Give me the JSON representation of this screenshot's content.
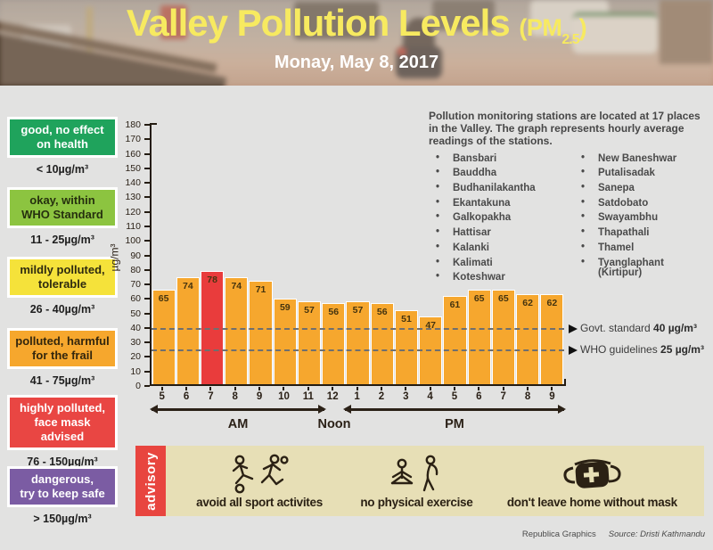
{
  "header": {
    "title": "Valley Pollution Levels",
    "pm_prefix": "(PM",
    "pm_sub": "2.5",
    "pm_close": ")",
    "subtitle": "Monay, May 8, 2017"
  },
  "legend": {
    "items": [
      {
        "line1": "good, no effect",
        "line2": "on health",
        "range": "< 10µg/m³",
        "color": "#1fa35c",
        "text_color": "#ffffff"
      },
      {
        "line1": "okay, within",
        "line2": "WHO Standard",
        "range": "11 - 25µg/m³",
        "color": "#8cc440",
        "text_color": "#26300f"
      },
      {
        "line1": "mildly polluted,",
        "line2": "tolerable",
        "range": "26 - 40µg/m³",
        "color": "#f5e23a",
        "text_color": "#2e2a10"
      },
      {
        "line1": "polluted, harmful",
        "line2": "for the frail",
        "range": "41 - 75µg/m³",
        "color": "#f6a72d",
        "text_color": "#33260d"
      },
      {
        "line1": "highly polluted,",
        "line2": "face mask advised",
        "range": "76 - 150µg/m³",
        "color": "#e94643",
        "text_color": "#ffffff"
      },
      {
        "line1": "dangerous,",
        "line2": "try to keep safe",
        "range": "> 150µg/m³",
        "color": "#7b5ca3",
        "text_color": "#ffffff"
      }
    ]
  },
  "chart_data": {
    "type": "bar",
    "title": "Valley Pollution Levels (PM2.5)",
    "date": "Monay, May 8, 2017",
    "categories": [
      "5",
      "6",
      "7",
      "8",
      "9",
      "10",
      "11",
      "12",
      "1",
      "2",
      "3",
      "4",
      "5",
      "6",
      "7",
      "8",
      "9"
    ],
    "values": [
      65,
      74,
      78,
      74,
      71,
      59,
      57,
      56,
      57,
      56,
      51,
      47,
      61,
      65,
      65,
      62,
      62
    ],
    "highlight_index": 2,
    "ylabel": "µg/m³",
    "ylim": [
      0,
      180
    ],
    "ytick_step": 10,
    "bar_color": "#f6a72e",
    "highlight_color": "#e93c3c",
    "periods": {
      "am": "AM",
      "noon": "Noon",
      "pm": "PM"
    },
    "reference_lines": [
      {
        "label": "Govt. standard",
        "value": 40,
        "value_text": "40 µg/m³"
      },
      {
        "label": "WHO guidelines",
        "value": 25,
        "value_text": "25 µg/m³"
      }
    ]
  },
  "stations": {
    "intro": "Pollution monitoring stations are located at 17 places in the Valley. The graph represents hourly average readings of the stations.",
    "col1": [
      "Bansbari",
      "Bauddha",
      "Budhanilakantha",
      "Ekantakuna",
      "Galkopakha",
      "Hattisar",
      "Kalanki",
      "Kalimati",
      "Koteshwar"
    ],
    "col2": [
      "New Baneshwar",
      "Putalisadak",
      "Sanepa",
      "Satdobato",
      "Swayambhu",
      "Thapathali",
      "Thamel",
      "Tyanglaphant\n(Kirtipur)"
    ]
  },
  "advisory": {
    "tab": "advisory",
    "items": [
      {
        "icon": "sports-icon",
        "label": "avoid all sport activites"
      },
      {
        "icon": "exercise-icon",
        "label": "no physical exercise"
      },
      {
        "icon": "mask-icon",
        "label": "don't leave home without mask"
      }
    ]
  },
  "footer": {
    "credit": "Republica Graphics",
    "source": "Source: Dristi Kathmandu"
  }
}
